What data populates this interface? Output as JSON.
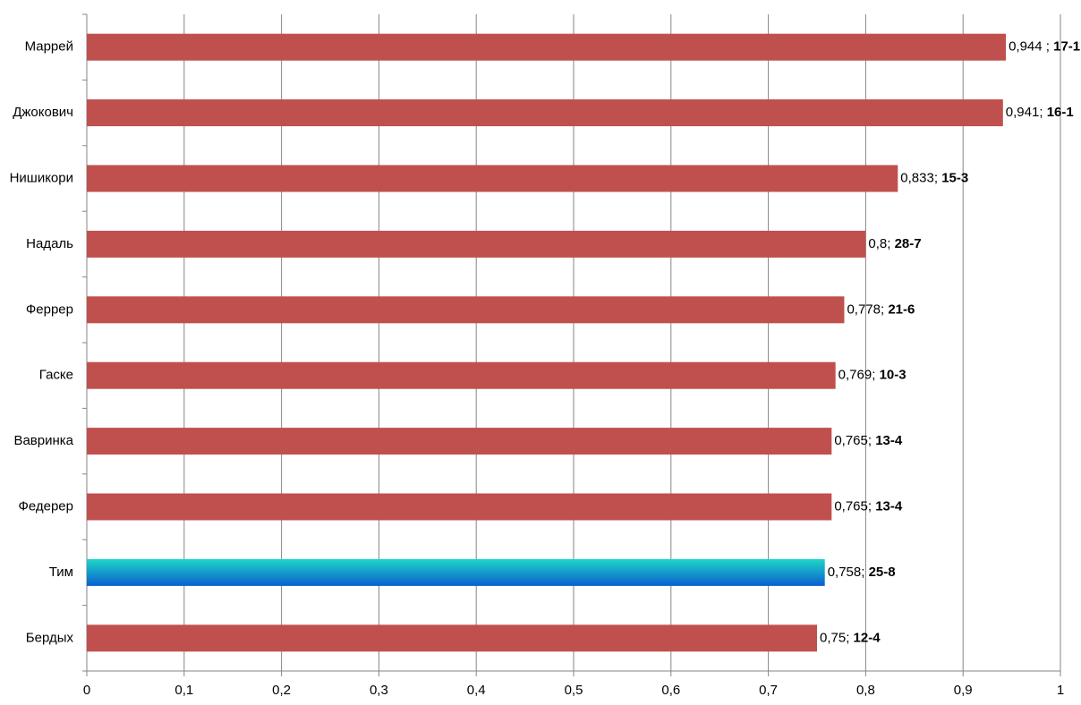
{
  "chart_data": {
    "type": "bar",
    "orientation": "horizontal",
    "categories": [
      "Маррей",
      "Джокович",
      "Нишикори",
      "Надаль",
      "Феррер",
      "Гаске",
      "Вавринка",
      "Федерер",
      "Тим",
      "Бердых"
    ],
    "values": [
      0.944,
      0.941,
      0.833,
      0.8,
      0.778,
      0.769,
      0.765,
      0.765,
      0.758,
      0.75
    ],
    "value_labels": [
      "0,944 ;",
      "0,941;",
      "0,833;",
      "0,8;",
      "0,778;",
      "0,769;",
      "0,765;",
      "0,765;",
      "0,758;",
      "0,75;"
    ],
    "records": [
      "17-1",
      "16-1",
      "15-3",
      "28-7",
      "21-6",
      "10-3",
      "13-4",
      "13-4",
      "25-8",
      "12-4"
    ],
    "colors": [
      "#c0504d",
      "#c0504d",
      "#c0504d",
      "#c0504d",
      "#c0504d",
      "#c0504d",
      "#c0504d",
      "#c0504d",
      [
        "#1ed6c6",
        "#0a5fd0"
      ],
      "#c0504d"
    ],
    "xlim": [
      0,
      1
    ],
    "xticks": [
      0,
      {
        "value": 0.1,
        "label": "0,1"
      },
      {
        "value": 0.2,
        "label": "0,2"
      },
      {
        "value": 0.3,
        "label": "0,3"
      },
      {
        "value": 0.4,
        "label": "0,4"
      },
      {
        "value": 0.5,
        "label": "0,5"
      },
      {
        "value": 0.6,
        "label": "0,6"
      },
      {
        "value": 0.7,
        "label": "0,7"
      },
      {
        "value": 0.8,
        "label": "0,8"
      },
      {
        "value": 0.9,
        "label": "0,9"
      },
      1
    ],
    "grid": true
  }
}
